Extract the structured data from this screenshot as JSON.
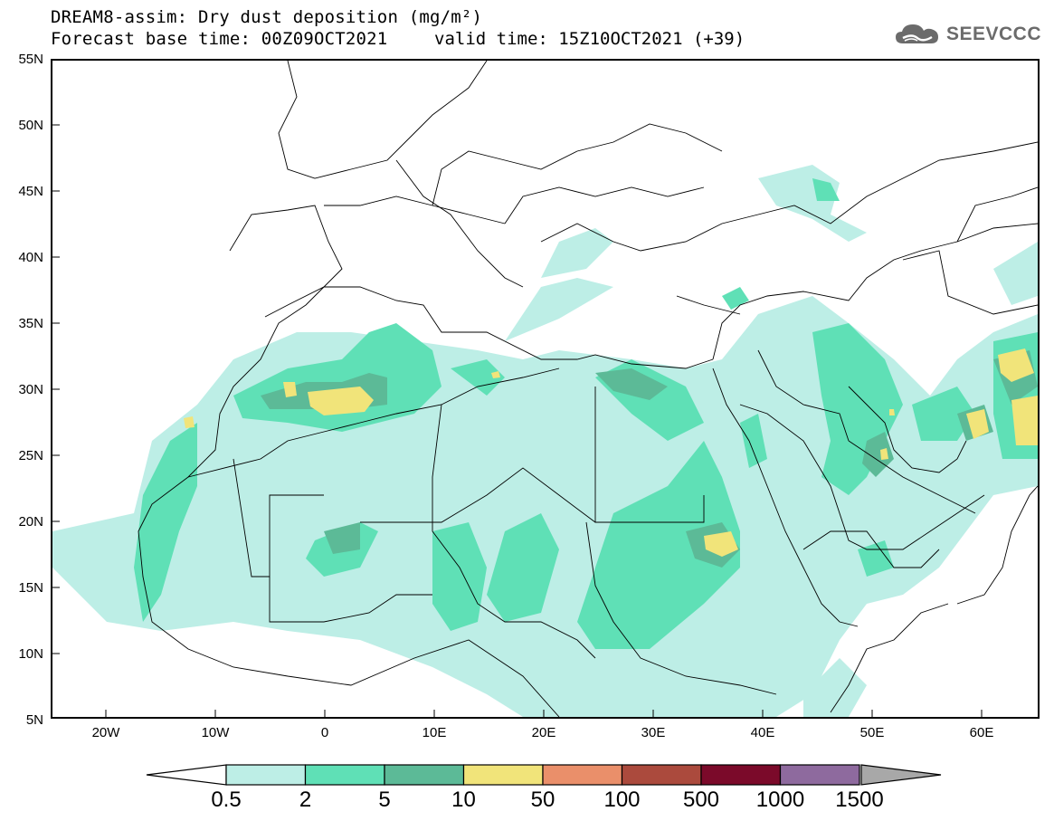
{
  "header": {
    "title_line1": "DREAM8-assim: Dry dust deposition (mg/m²)",
    "title_line2": "Forecast base time: 00Z09OCT2021",
    "valid_time": "valid time: 15Z10OCT2021 (+39)",
    "logo_text": "SEEVCCC"
  },
  "map": {
    "lon_range": [
      -25,
      65
    ],
    "lat_range": [
      5,
      55
    ],
    "lat_labels": [
      "55N",
      "50N",
      "45N",
      "40N",
      "35N",
      "30N",
      "25N",
      "20N",
      "15N",
      "10N",
      "5N"
    ],
    "lon_labels": [
      "20W",
      "10W",
      "0",
      "10E",
      "20E",
      "30E",
      "40E",
      "50E",
      "60E"
    ],
    "ocean_color": "#ffffff",
    "boundary_color": "#000000"
  },
  "legend": {
    "thresholds": [
      "0.5",
      "2",
      "5",
      "10",
      "50",
      "100",
      "500",
      "1000",
      "1500"
    ],
    "colors": [
      "#bdeee6",
      "#5fe0b6",
      "#5cba97",
      "#f1e47a",
      "#ea8f6a",
      "#ab4a3d",
      "#7b0a2a",
      "#8e6a9e",
      "#a8a8a8"
    ],
    "under_color": "#ffffff",
    "over_color": "#a8a8a8"
  }
}
